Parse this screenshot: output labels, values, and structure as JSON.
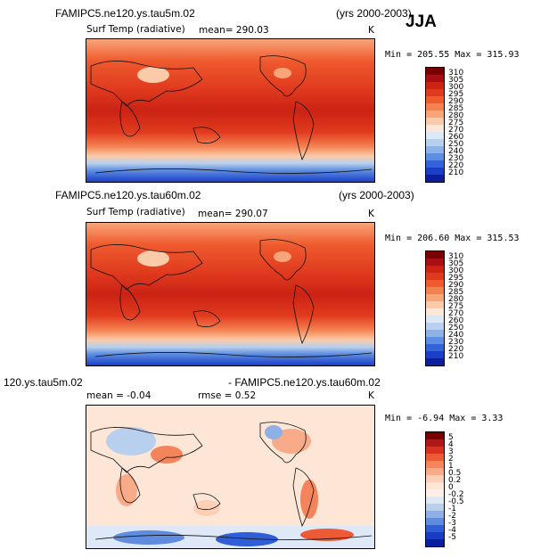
{
  "season": "JJA",
  "panels": [
    {
      "id": "p1",
      "case": "FAMIPC5.ne120.ys.tau5m.02",
      "years": "(yrs 2000-2003)",
      "variable": "Surf Temp (radiative)",
      "stat_text": "mean= 290.03",
      "units": "K",
      "minmax": "Min = 205.55 Max = 315.93",
      "colorbar_labels": [
        "310",
        "305",
        "300",
        "295",
        "290",
        "285",
        "280",
        "275",
        "270",
        "260",
        "250",
        "240",
        "230",
        "220",
        "210"
      ],
      "colors": [
        "#7a0000",
        "#a50f15",
        "#cb2314",
        "#e03a1e",
        "#ef5b2e",
        "#f48050",
        "#f8a57a",
        "#fbcaa8",
        "#fde8d8",
        "#dde8f6",
        "#b8d0ee",
        "#8cb2e6",
        "#5e8ee0",
        "#3462d8",
        "#1a3ec8",
        "#0a1f9e"
      ]
    },
    {
      "id": "p2",
      "case": "FAMIPC5.ne120.ys.tau60m.02",
      "years": "(yrs 2000-2003)",
      "variable": "Surf Temp (radiative)",
      "stat_text": "mean= 290.07",
      "units": "K",
      "minmax": "Min = 206.60 Max = 315.53",
      "colorbar_labels": [
        "310",
        "305",
        "300",
        "295",
        "290",
        "285",
        "280",
        "275",
        "270",
        "260",
        "250",
        "240",
        "230",
        "220",
        "210"
      ],
      "colors": [
        "#7a0000",
        "#a50f15",
        "#cb2314",
        "#e03a1e",
        "#ef5b2e",
        "#f48050",
        "#f8a57a",
        "#fbcaa8",
        "#fde8d8",
        "#dde8f6",
        "#b8d0ee",
        "#8cb2e6",
        "#5e8ee0",
        "#3462d8",
        "#1a3ec8",
        "#0a1f9e"
      ]
    },
    {
      "id": "p3",
      "case_left": "120.ys.tau5m.02",
      "case_right": "- FAMIPC5.ne120.ys.tau60m.02",
      "mean_text": "mean =  -0.04",
      "rmse_text": "rmse =  0.52",
      "units": "K",
      "minmax": "Min =  -6.94 Max =   3.33",
      "colorbar_labels": [
        "5",
        "4",
        "3",
        "2",
        "1",
        "0.5",
        "0.2",
        "0",
        "-0.2",
        "-0.5",
        "-1",
        "-2",
        "-3",
        "-4",
        "-5"
      ],
      "colors": [
        "#7a0000",
        "#b01818",
        "#d8321e",
        "#ec5a36",
        "#f4845c",
        "#f8ab88",
        "#fcd0b6",
        "#fde6d6",
        "#fdf0e8",
        "#dfe8f6",
        "#b9cfee",
        "#8eb0e6",
        "#5f8cdf",
        "#2f5ed6",
        "#1a3cc4",
        "#0a1f9e"
      ]
    }
  ]
}
